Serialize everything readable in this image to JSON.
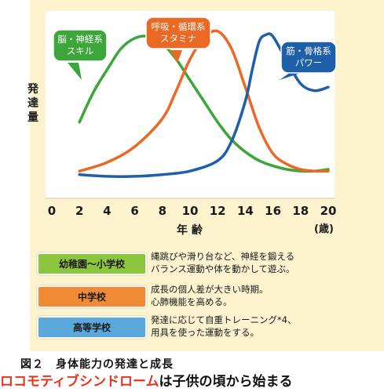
{
  "chart_data": {
    "type": "line",
    "xlabel": "年 齢",
    "x_unit": "(歳)",
    "ylabel": "発達量",
    "xticks": [
      0,
      2,
      4,
      6,
      8,
      10,
      12,
      14,
      16,
      18,
      20
    ],
    "xlim": [
      0,
      20
    ],
    "ylim": [
      0,
      100
    ],
    "series": [
      {
        "name": "脳・神経系\nスキル",
        "color": "#3ca63a",
        "x": [
          2,
          3,
          4,
          5,
          6,
          7,
          8,
          9,
          10,
          11,
          12,
          13,
          14,
          15,
          16,
          17,
          18,
          19,
          20
        ],
        "y": [
          40,
          57,
          70,
          82,
          88,
          89,
          85,
          76,
          64,
          52,
          40,
          30,
          23,
          18,
          15,
          13,
          12,
          12,
          13
        ]
      },
      {
        "name": "呼吸・循環系\nスタミナ",
        "color": "#ea6a25",
        "x": [
          2,
          4,
          6,
          8,
          9,
          10,
          11,
          12,
          13,
          14,
          15,
          16,
          17,
          18,
          19,
          20
        ],
        "y": [
          12,
          17,
          26,
          42,
          58,
          76,
          88,
          92,
          82,
          60,
          37,
          22,
          16,
          13,
          12,
          12
        ]
      },
      {
        "name": "筋・骨格系\nパワー",
        "color": "#1f5fa8",
        "x": [
          2,
          4,
          6,
          8,
          10,
          12,
          13,
          14,
          14.5,
          15,
          15.5,
          16,
          17,
          18,
          19,
          20
        ],
        "y": [
          10,
          9,
          9,
          10,
          12,
          18,
          29,
          52,
          70,
          86,
          90,
          89,
          75,
          62,
          58,
          60
        ]
      }
    ]
  },
  "legend_rows": [
    {
      "stage": "幼稚園〜小学校",
      "color": "#8cc63f",
      "lines": [
        "縄跳びや滑り台など、神経を鍛える",
        "バランス運動や体を動かして遊ぶ。"
      ]
    },
    {
      "stage": "中学校",
      "color": "#f08a35",
      "lines": [
        "成長の個人差が大きい時期。",
        "心肺機能を高める。"
      ]
    },
    {
      "stage": "高等学校",
      "color": "#5aa8dc",
      "lines": [
        "発達に応じて自重トレーニング*4、",
        "用具を使った運動をする。"
      ]
    }
  ],
  "caption": "図２　身体能力の発達と成長",
  "tagline": {
    "highlight": "ロコモティブシンドローム",
    "rest": "は子供の頃から始まる"
  }
}
